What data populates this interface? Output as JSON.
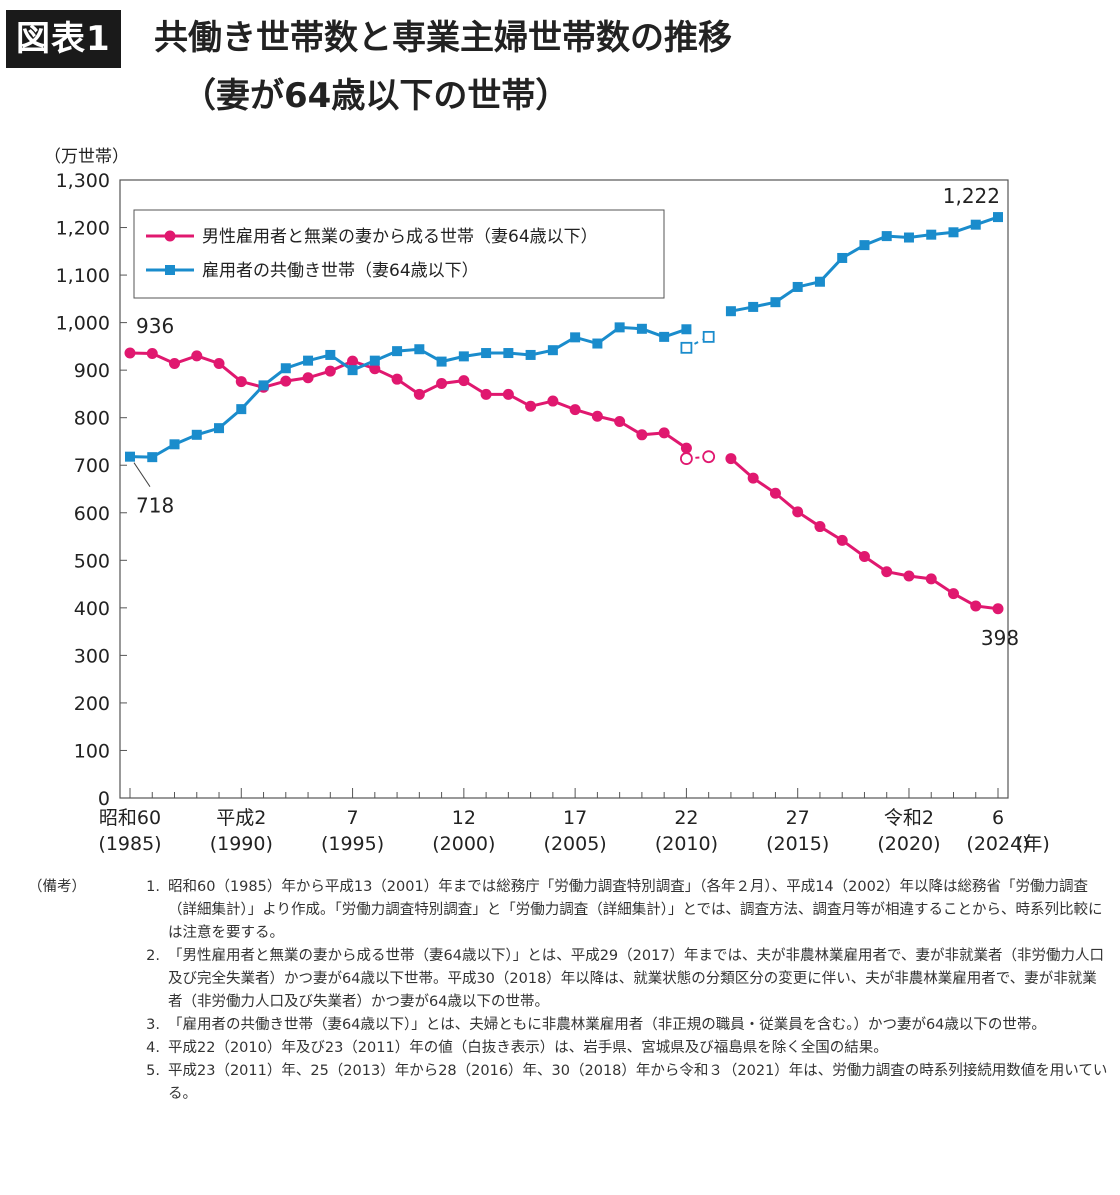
{
  "header": {
    "badge": "図表1",
    "title_line1": "共働き世帯数と専業主婦世帯数の推移",
    "title_line2": "（妻が64歳以下の世帯）"
  },
  "chart_data": {
    "type": "line",
    "ylabel": "（万世帯）",
    "xunit": "(年)",
    "ylim": [
      0,
      1300
    ],
    "yticks": [
      0,
      100,
      200,
      300,
      400,
      500,
      600,
      700,
      800,
      900,
      "1,000",
      "1,100",
      "1,200",
      "1,300"
    ],
    "ytick_values": [
      0,
      100,
      200,
      300,
      400,
      500,
      600,
      700,
      800,
      900,
      1000,
      1100,
      1200,
      1300
    ],
    "x_start": 1985,
    "x_end": 2024,
    "xticks": [
      {
        "year": 1985,
        "top": "昭和60",
        "bottom": "(1985)"
      },
      {
        "year": 1990,
        "top": "平成2",
        "bottom": "(1990)"
      },
      {
        "year": 1995,
        "top": "7",
        "bottom": "(1995)"
      },
      {
        "year": 2000,
        "top": "12",
        "bottom": "(2000)"
      },
      {
        "year": 2005,
        "top": "17",
        "bottom": "(2005)"
      },
      {
        "year": 2010,
        "top": "22",
        "bottom": "(2010)"
      },
      {
        "year": 2015,
        "top": "27",
        "bottom": "(2015)"
      },
      {
        "year": 2020,
        "top": "令和2",
        "bottom": "(2020)"
      },
      {
        "year": 2024,
        "top": "6",
        "bottom": "(2024)"
      }
    ],
    "legend_position": "top-left",
    "series": [
      {
        "name": "男性雇用者と無業の妻から成る世帯（妻64歳以下）",
        "color": "#e0186f",
        "marker": "circle",
        "segments": [
          {
            "style": "solid",
            "fill": true,
            "points": [
              [
                1985,
                936
              ],
              [
                1986,
                935
              ],
              [
                1987,
                914
              ],
              [
                1988,
                930
              ],
              [
                1989,
                914
              ],
              [
                1990,
                876
              ],
              [
                1991,
                864
              ],
              [
                1992,
                877
              ],
              [
                1993,
                884
              ],
              [
                1994,
                898
              ],
              [
                1995,
                919
              ],
              [
                1996,
                903
              ],
              [
                1997,
                881
              ],
              [
                1998,
                849
              ],
              [
                1999,
                872
              ],
              [
                2000,
                878
              ],
              [
                2001,
                849
              ],
              [
                2002,
                849
              ],
              [
                2003,
                824
              ],
              [
                2004,
                835
              ],
              [
                2005,
                817
              ],
              [
                2006,
                803
              ],
              [
                2007,
                792
              ],
              [
                2008,
                764
              ],
              [
                2009,
                768
              ],
              [
                2010,
                736
              ]
            ]
          },
          {
            "style": "dashed",
            "fill": false,
            "points": [
              [
                2010,
                714
              ],
              [
                2011,
                718
              ]
            ]
          },
          {
            "style": "solid",
            "fill": true,
            "points": [
              [
                2012,
                714
              ],
              [
                2013,
                673
              ],
              [
                2014,
                641
              ],
              [
                2015,
                602
              ],
              [
                2016,
                571
              ],
              [
                2017,
                542
              ],
              [
                2018,
                508
              ],
              [
                2019,
                476
              ],
              [
                2020,
                467
              ],
              [
                2021,
                461
              ],
              [
                2022,
                430
              ],
              [
                2023,
                404
              ],
              [
                2024,
                398
              ]
            ]
          }
        ]
      },
      {
        "name": "雇用者の共働き世帯（妻64歳以下）",
        "color": "#1a8ccc",
        "marker": "square",
        "segments": [
          {
            "style": "solid",
            "fill": true,
            "points": [
              [
                1985,
                718
              ],
              [
                1986,
                717
              ],
              [
                1987,
                744
              ],
              [
                1988,
                764
              ],
              [
                1989,
                778
              ],
              [
                1990,
                818
              ],
              [
                1991,
                868
              ],
              [
                1992,
                904
              ],
              [
                1993,
                920
              ],
              [
                1994,
                932
              ],
              [
                1995,
                900
              ],
              [
                1996,
                920
              ],
              [
                1997,
                940
              ],
              [
                1998,
                944
              ],
              [
                1999,
                918
              ],
              [
                2000,
                929
              ],
              [
                2001,
                936
              ],
              [
                2002,
                936
              ],
              [
                2003,
                932
              ],
              [
                2004,
                942
              ],
              [
                2005,
                969
              ],
              [
                2006,
                956
              ],
              [
                2007,
                990
              ],
              [
                2008,
                987
              ],
              [
                2009,
                970
              ],
              [
                2010,
                986
              ]
            ]
          },
          {
            "style": "dashed",
            "fill": false,
            "points": [
              [
                2010,
                947
              ],
              [
                2011,
                970
              ]
            ]
          },
          {
            "style": "solid",
            "fill": true,
            "points": [
              [
                2012,
                1024
              ],
              [
                2013,
                1033
              ],
              [
                2014,
                1043
              ],
              [
                2015,
                1075
              ],
              [
                2016,
                1086
              ],
              [
                2017,
                1136
              ],
              [
                2018,
                1163
              ],
              [
                2019,
                1182
              ],
              [
                2020,
                1179
              ],
              [
                2021,
                1185
              ],
              [
                2022,
                1190
              ],
              [
                2023,
                1206
              ],
              [
                2024,
                1222
              ]
            ]
          }
        ]
      }
    ],
    "annotations": [
      {
        "series": 0,
        "year": 1985,
        "value": 936,
        "label": "936",
        "pos": "above-right"
      },
      {
        "series": 1,
        "year": 1985,
        "value": 718,
        "label": "718",
        "pos": "below-right-leader"
      },
      {
        "series": 1,
        "year": 2024,
        "value": 1222,
        "label": "1,222",
        "pos": "above-left"
      },
      {
        "series": 0,
        "year": 2024,
        "value": 398,
        "label": "398",
        "pos": "below"
      }
    ]
  },
  "notes": {
    "head": "（備考）",
    "items": [
      {
        "num": "1.",
        "text": "昭和60（1985）年から平成13（2001）年までは総務庁「労働力調査特別調査」（各年２月）、平成14（2002）年以降は総務省「労働力調査（詳細集計）」より作成。「労働力調査特別調査」と「労働力調査（詳細集計）」とでは、調査方法、調査月等が相違することから、時系列比較には注意を要する。"
      },
      {
        "num": "2.",
        "text": "「男性雇用者と無業の妻から成る世帯（妻64歳以下）」とは、平成29（2017）年までは、夫が非農林業雇用者で、妻が非就業者（非労働力人口及び完全失業者）かつ妻が64歳以下世帯。平成30（2018）年以降は、就業状態の分類区分の変更に伴い、夫が非農林業雇用者で、妻が非就業者（非労働力人口及び失業者）かつ妻が64歳以下の世帯。"
      },
      {
        "num": "3.",
        "text": "「雇用者の共働き世帯（妻64歳以下）」とは、夫婦ともに非農林業雇用者（非正規の職員・従業員を含む。）かつ妻が64歳以下の世帯。"
      },
      {
        "num": "4.",
        "text": "平成22（2010）年及び23（2011）年の値（白抜き表示）は、岩手県、宮城県及び福島県を除く全国の結果。"
      },
      {
        "num": "5.",
        "text": "平成23（2011）年、25（2013）年から28（2016）年、30（2018）年から令和３（2021）年は、労働力調査の時系列接続用数値を用いている。"
      }
    ]
  }
}
